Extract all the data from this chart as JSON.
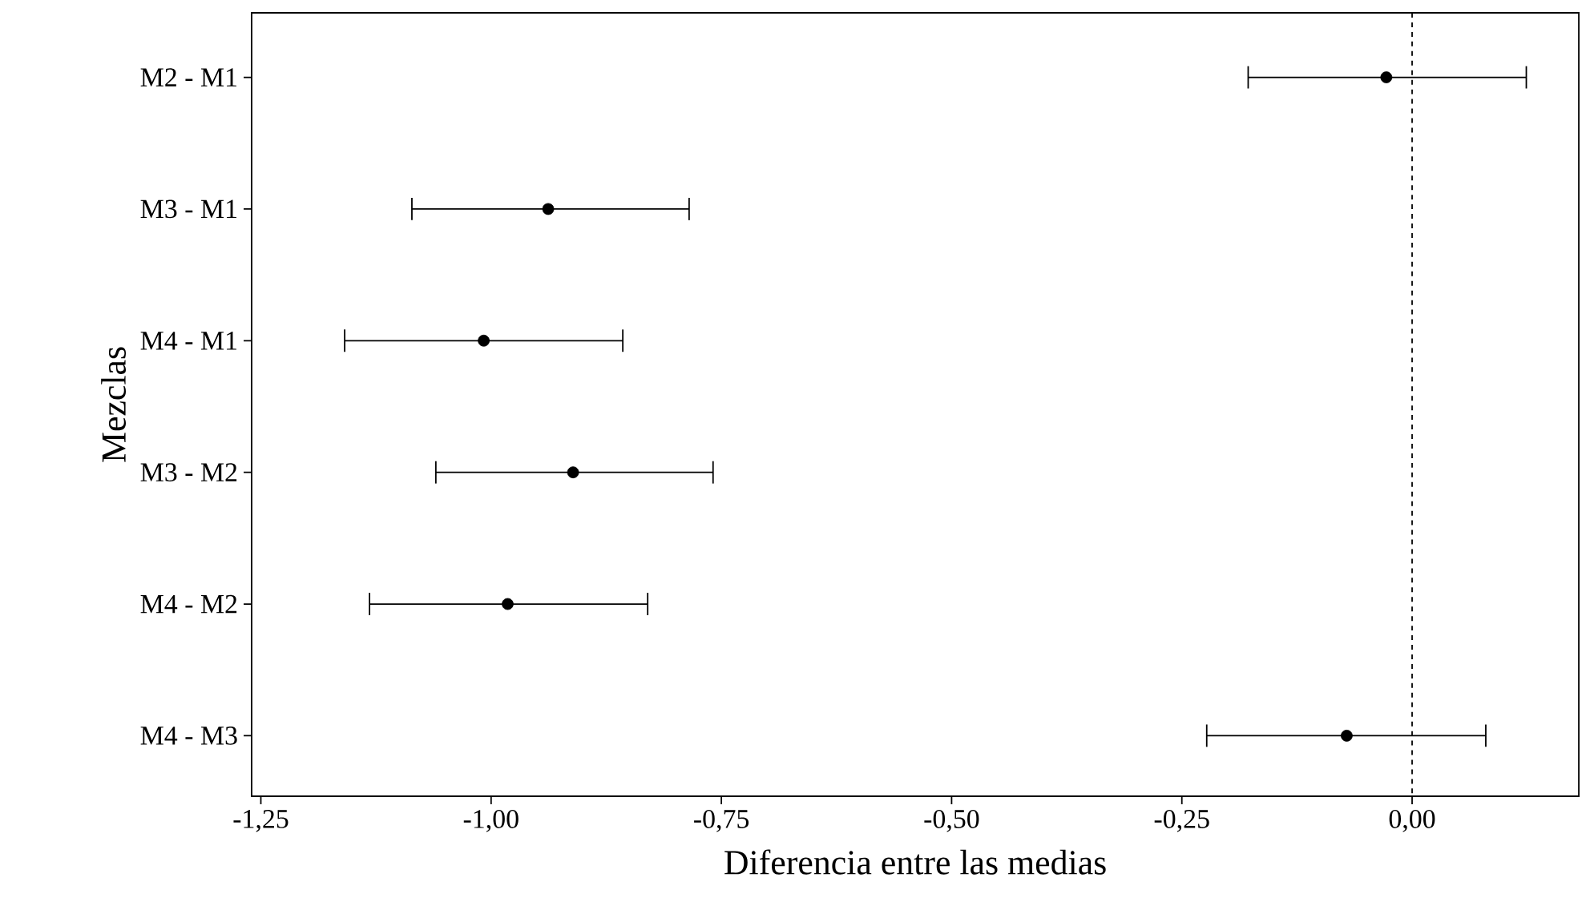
{
  "chart_data": {
    "type": "scatter",
    "orientation": "horizontal",
    "xlabel": "Diferencia entre las medias",
    "ylabel": "Mezclas",
    "categories": [
      "M2 - M1",
      "M3 - M1",
      "M4 - M1",
      "M3 - M2",
      "M4 - M2",
      "M4 - M3"
    ],
    "values": [
      -0.028,
      -0.938,
      -1.008,
      -0.911,
      -0.982,
      -0.071
    ],
    "errors": [
      [
        -0.178,
        0.124
      ],
      [
        -1.086,
        -0.785
      ],
      [
        -1.159,
        -0.857
      ],
      [
        -1.06,
        -0.759
      ],
      [
        -1.132,
        -0.83
      ],
      [
        -0.223,
        0.08
      ]
    ],
    "color": "#000000",
    "grid": false,
    "xlim": [
      -1.26,
      0.181
    ],
    "xticks": [
      {
        "value": -1.25,
        "label": "-1,25"
      },
      {
        "value": -1.0,
        "label": "-1,00"
      },
      {
        "value": -0.75,
        "label": "-0,75"
      },
      {
        "value": -0.5,
        "label": "-0,50"
      },
      {
        "value": -0.25,
        "label": "-0,25"
      },
      {
        "value": 0.0,
        "label": "0,00"
      }
    ],
    "ref_lines": [
      {
        "axis": "x",
        "value": 0.0,
        "label": null,
        "color": "#000000",
        "line_style": "dashed"
      }
    ]
  }
}
